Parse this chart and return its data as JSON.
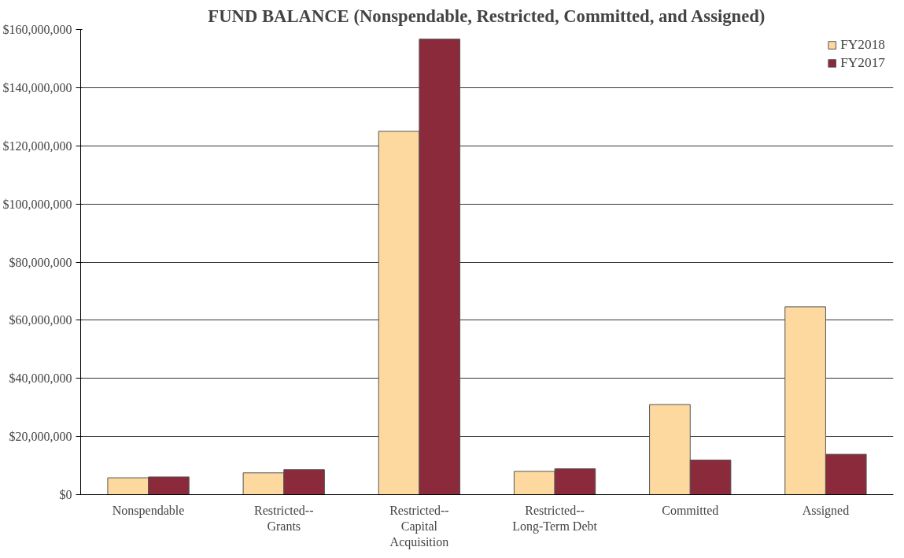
{
  "chart_data": {
    "type": "bar",
    "title": "FUND BALANCE (Nonspendable, Restricted, Committed, and Assigned)",
    "categories": [
      "Nonspendable",
      "Restricted--\nGrants",
      "Restricted--\nCapital\nAcquisition",
      "Restricted--\nLong-Term Debt",
      "Committed",
      "Assigned"
    ],
    "series": [
      {
        "name": "FY2018",
        "color": "#fdd9a0",
        "values": [
          5800000,
          7500000,
          125000000,
          8000000,
          31000000,
          64600000
        ]
      },
      {
        "name": "FY2017",
        "color": "#8b2a3a",
        "values": [
          6100000,
          8600000,
          156700000,
          8900000,
          11900000,
          13900000
        ]
      }
    ],
    "ylim": [
      0,
      160000000
    ],
    "yticks": [
      {
        "value": 0,
        "label": "$0"
      },
      {
        "value": 20000000,
        "label": "$20,000,000"
      },
      {
        "value": 40000000,
        "label": "$40,000,000"
      },
      {
        "value": 60000000,
        "label": "$60,000,000"
      },
      {
        "value": 80000000,
        "label": "$80,000,000"
      },
      {
        "value": 100000000,
        "label": "$100,000,000"
      },
      {
        "value": 120000000,
        "label": "$120,000,000"
      },
      {
        "value": 140000000,
        "label": "$140,000,000"
      },
      {
        "value": 160000000,
        "label": "$160,000,000"
      }
    ],
    "grid": "y",
    "legend": "top right"
  }
}
